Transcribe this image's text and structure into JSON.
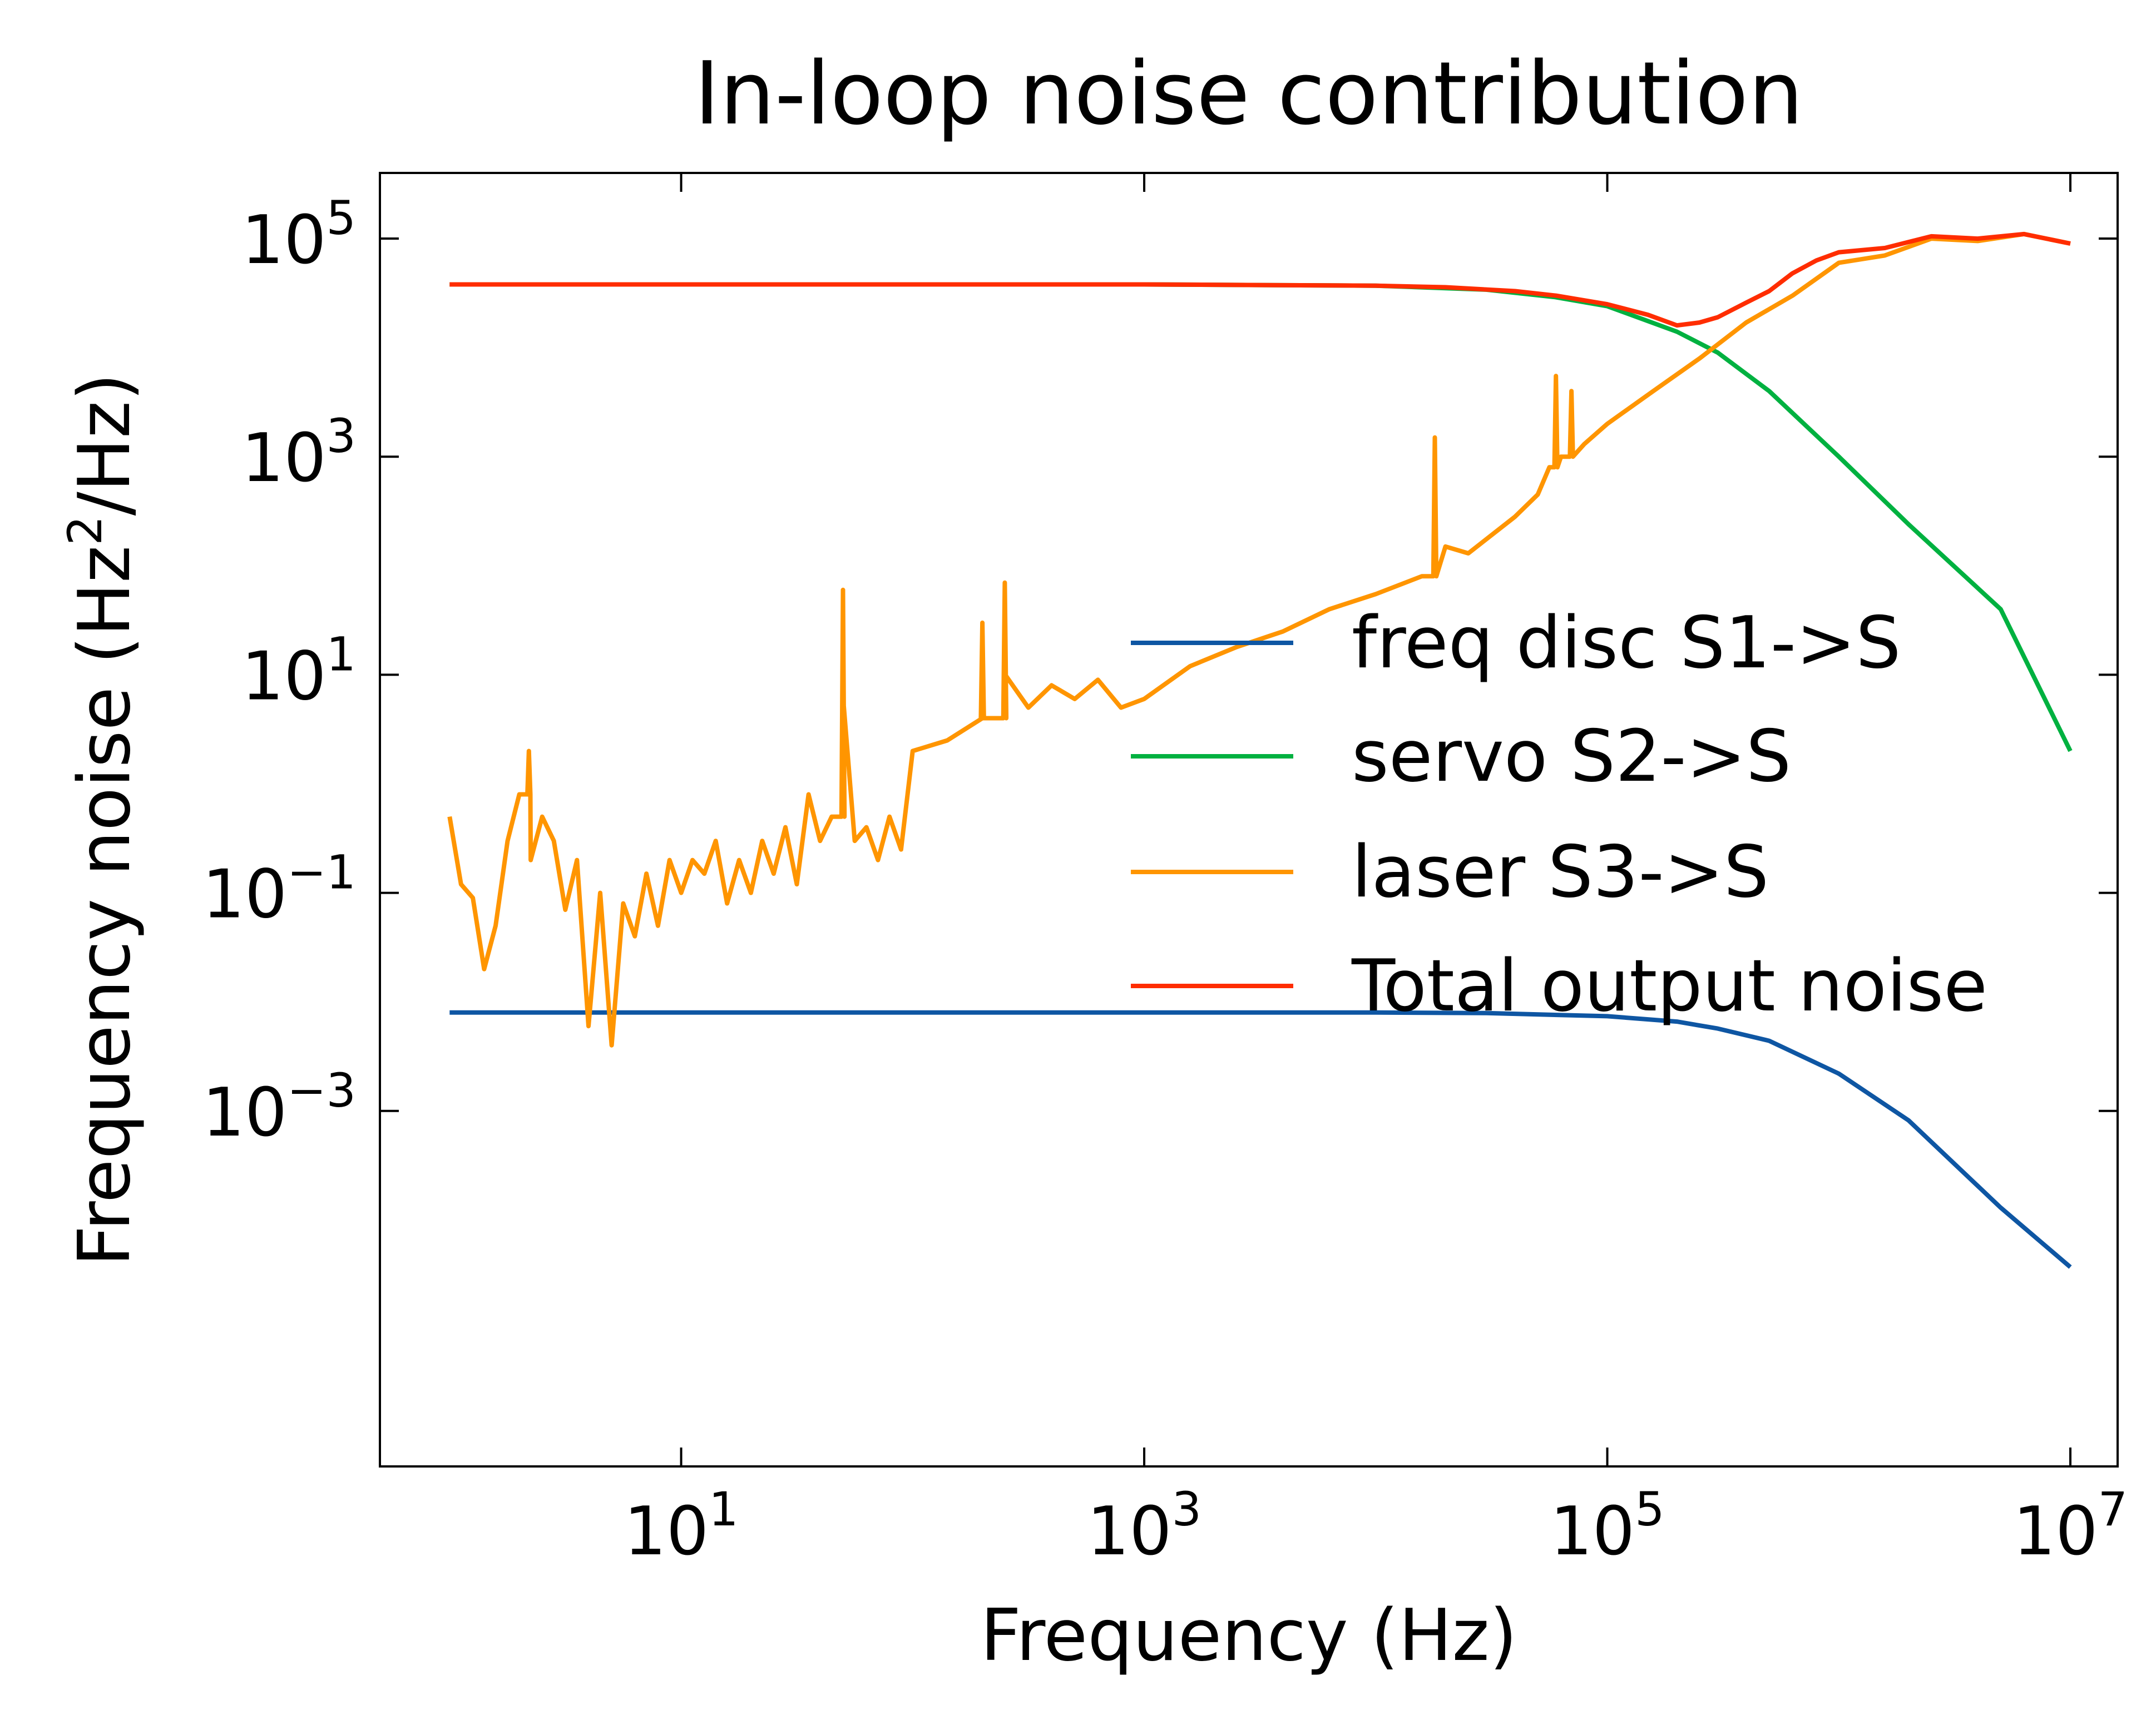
{
  "chart_data": {
    "type": "line",
    "title": "In-loop noise contribution",
    "xlabel": "Frequency (Hz)",
    "ylabel_main": "Frequency noise (Hz",
    "ylabel_sup": "2",
    "ylabel_tail": "/Hz)",
    "x_scale": "log",
    "y_scale": "log",
    "xlim": [
      0.5,
      16000000
    ],
    "ylim": [
      5.5e-07,
      400000
    ],
    "x_ticks": [
      {
        "value": 10,
        "base": "10",
        "exp": "1"
      },
      {
        "value": 1000,
        "base": "10",
        "exp": "3"
      },
      {
        "value": 100000,
        "base": "10",
        "exp": "5"
      },
      {
        "value": 10000000,
        "base": "10",
        "exp": "7"
      }
    ],
    "y_ticks": [
      {
        "value": 0.001,
        "base": "10",
        "exp": "−3"
      },
      {
        "value": 0.1,
        "base": "10",
        "exp": "−1"
      },
      {
        "value": 10,
        "base": "10",
        "exp": "1"
      },
      {
        "value": 1000,
        "base": "10",
        "exp": "3"
      },
      {
        "value": 100000,
        "base": "10",
        "exp": "5"
      }
    ],
    "grid": false,
    "legend_position": "center-right",
    "series": [
      {
        "name": "freq disc S1->S",
        "color": "#0e56a3",
        "x": [
          1,
          10,
          100,
          1000,
          10000,
          30000,
          100000,
          200000,
          300000,
          500000,
          1000000,
          2000000,
          5000000,
          10000000
        ],
        "y": [
          0.008,
          0.008,
          0.008,
          0.008,
          0.008,
          0.0079,
          0.0074,
          0.0066,
          0.0057,
          0.0044,
          0.0022,
          0.00082,
          0.00013,
          3.7e-05
        ]
      },
      {
        "name": "servo S2->S",
        "color": "#00b140",
        "x": [
          1,
          10,
          100,
          1000,
          10000,
          30000,
          60000,
          100000,
          200000,
          300000,
          500000,
          1000000,
          2000000,
          5000000,
          10000000
        ],
        "y": [
          38000,
          38000,
          38000,
          38000,
          37000,
          34000,
          29000,
          24000,
          14000,
          9000,
          4000,
          1000,
          240,
          40,
          2
        ]
      },
      {
        "name": "laser S3->S",
        "color": "#ff9500",
        "x": [
          1,
          1.12,
          1.26,
          1.41,
          1.58,
          1.78,
          2,
          2.24,
          2.51,
          2.82,
          3.16,
          3.55,
          3.98,
          4.47,
          5.01,
          5.62,
          6.31,
          7.08,
          7.94,
          8.91,
          10,
          11.2,
          12.6,
          14.1,
          15.8,
          17.8,
          20,
          22.4,
          25.1,
          28.2,
          31.6,
          35.5,
          39.8,
          44.7,
          50.1,
          56.2,
          63.1,
          70.8,
          79.4,
          89.1,
          100,
          141,
          200,
          251,
          316,
          398,
          501,
          631,
          794,
          1000,
          1580,
          2510,
          3980,
          6310,
          10000,
          15800,
          20000,
          25100,
          39800,
          50100,
          56200,
          63100,
          79400,
          100000,
          158000,
          251000,
          398000,
          631000,
          1000000,
          1580000,
          2510000,
          3980000,
          6310000,
          10000000
        ],
        "y": [
          0.5,
          0.12,
          0.09,
          0.02,
          0.05,
          0.3,
          0.8,
          0.2,
          0.5,
          0.3,
          0.07,
          0.2,
          0.006,
          0.1,
          0.004,
          0.08,
          0.04,
          0.15,
          0.05,
          0.2,
          0.1,
          0.2,
          0.15,
          0.3,
          0.08,
          0.2,
          0.1,
          0.3,
          0.15,
          0.4,
          0.12,
          0.8,
          0.3,
          0.5,
          6,
          0.3,
          0.4,
          0.2,
          0.5,
          0.25,
          2,
          2.5,
          4,
          10,
          5,
          8,
          6,
          9,
          5,
          6,
          12,
          18,
          25,
          40,
          55,
          80,
          150,
          130,
          280,
          450,
          800,
          1000,
          1300,
          2000,
          4000,
          8000,
          17000,
          30000,
          60000,
          70000,
          100000,
          95000,
          110000,
          90000
        ],
        "spikes": [
          {
            "x": 2.2,
            "y": 2
          },
          {
            "x": 50,
            "y": 60
          },
          {
            "x": 200,
            "y": 30
          },
          {
            "x": 250,
            "y": 70
          },
          {
            "x": 18000,
            "y": 1500
          },
          {
            "x": 60000,
            "y": 5500
          },
          {
            "x": 70000,
            "y": 4000
          }
        ]
      },
      {
        "name": "Total output noise",
        "color": "#ff2d00",
        "x": [
          1,
          10,
          100,
          1000,
          10000,
          20000,
          40000,
          60000,
          100000,
          150000,
          200000,
          250000,
          300000,
          400000,
          500000,
          630000,
          800000,
          1000000,
          1580000,
          2510000,
          3980000,
          6310000,
          10000000
        ],
        "y": [
          38000,
          38000,
          38000,
          38000,
          37000,
          35800,
          33000,
          30000,
          25000,
          20000,
          16000,
          17000,
          19000,
          26000,
          33000,
          48000,
          63000,
          75000,
          82000,
          105000,
          100000,
          110000,
          90000
        ]
      }
    ]
  }
}
